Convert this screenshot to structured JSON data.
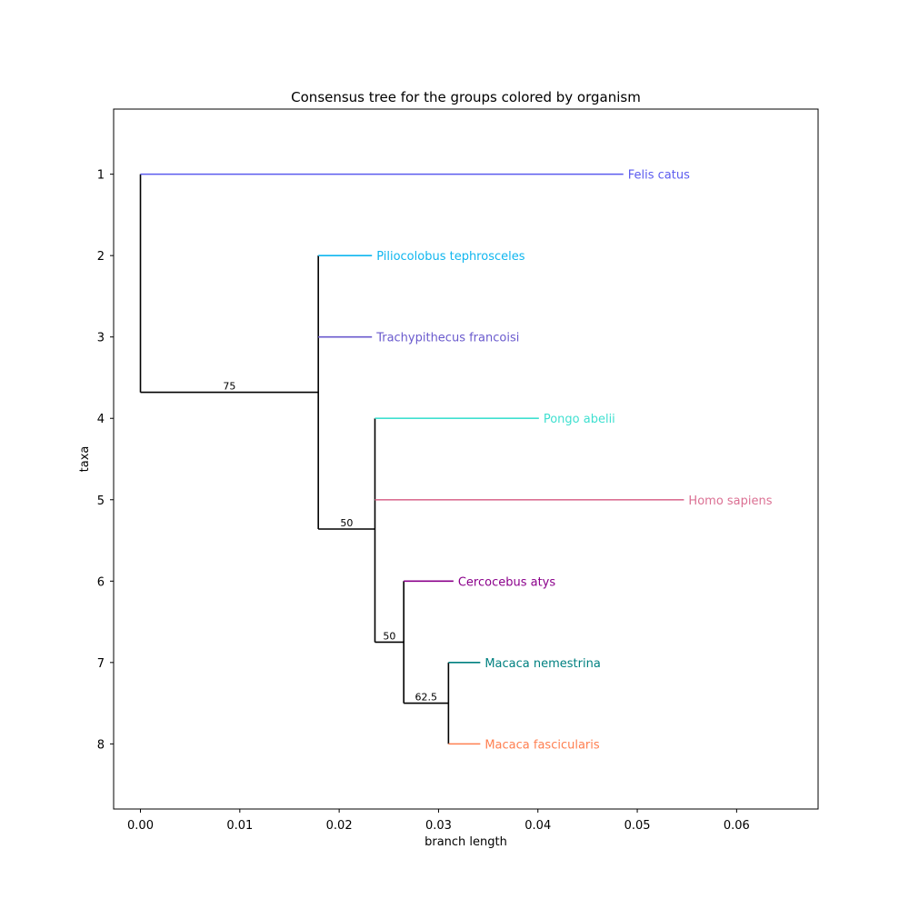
{
  "chart_data": {
    "type": "tree",
    "title": "Consensus tree for the groups colored by organism",
    "xlabel": "branch length",
    "ylabel": "taxa",
    "xlim": [
      -0.0027,
      0.0682
    ],
    "ylim": [
      8.8,
      0.2
    ],
    "x_ticks": [
      0.0,
      0.01,
      0.02,
      0.03,
      0.04,
      0.05,
      0.06
    ],
    "x_tick_labels": [
      "0.00",
      "0.01",
      "0.02",
      "0.03",
      "0.04",
      "0.05",
      "0.06"
    ],
    "y_ticks": [
      1,
      2,
      3,
      4,
      5,
      6,
      7,
      8
    ],
    "y_tick_labels": [
      "1",
      "2",
      "3",
      "4",
      "5",
      "6",
      "7",
      "8"
    ],
    "leaves": [
      {
        "name": "Felis catus",
        "taxon": 1,
        "x_start": 0.0,
        "x_end": 0.0486,
        "color": "#5b5bef"
      },
      {
        "name": "Piliocolobus tephrosceles",
        "taxon": 2,
        "x_start": 0.0179,
        "x_end": 0.0233,
        "color": "#0fb6ef"
      },
      {
        "name": "Trachypithecus francoisi",
        "taxon": 3,
        "x_start": 0.0179,
        "x_end": 0.0233,
        "color": "#6a5acd"
      },
      {
        "name": "Pongo abelii",
        "taxon": 4,
        "x_start": 0.0236,
        "x_end": 0.0401,
        "color": "#40e0d0"
      },
      {
        "name": "Homo sapiens",
        "taxon": 5,
        "x_start": 0.0236,
        "x_end": 0.0547,
        "color": "#db7093"
      },
      {
        "name": "Cercocebus atys",
        "taxon": 6,
        "x_start": 0.0265,
        "x_end": 0.0315,
        "color": "#8b008b"
      },
      {
        "name": "Macaca nemestrina",
        "taxon": 7,
        "x_start": 0.031,
        "x_end": 0.0342,
        "color": "#008080"
      },
      {
        "name": "Macaca fascicularis",
        "taxon": 8,
        "x_start": 0.031,
        "x_end": 0.0342,
        "color": "#ff7f50"
      }
    ],
    "internal_nodes": [
      {
        "x": 0.0,
        "y_min": 1,
        "y_max": 3.68,
        "parent_x": 0.0,
        "y": 2.34,
        "support": ""
      },
      {
        "x": 0.0179,
        "y_min": 2,
        "y_max": 5.36,
        "parent_x": 0.0,
        "y": 3.68,
        "support": "75"
      },
      {
        "x": 0.0236,
        "y_min": 4,
        "y_max": 6.75,
        "parent_x": 0.0179,
        "y": 5.36,
        "support": "50"
      },
      {
        "x": 0.0265,
        "y_min": 6,
        "y_max": 7.5,
        "parent_x": 0.0236,
        "y": 6.75,
        "support": "50"
      },
      {
        "x": 0.031,
        "y_min": 7,
        "y_max": 8,
        "parent_x": 0.0265,
        "y": 7.5,
        "support": "62.5"
      }
    ]
  }
}
